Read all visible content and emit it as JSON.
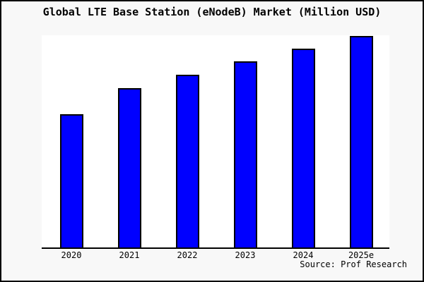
{
  "window": {
    "title": "Global LTE Base Station (eNodeB) Market (Million USD)"
  },
  "colors": {
    "frame_background": "#f8f8f8",
    "plot_background": "#ffffff",
    "bar_fill": "#0000ff",
    "bar_border": "#000000",
    "frame_border": "#000000",
    "text": "#000000"
  },
  "source": {
    "label": "Source: Prof Research"
  },
  "chart_data": {
    "type": "bar",
    "title": "Global LTE Base Station (eNodeB) Market (Million USD)",
    "categories": [
      "2020",
      "2021",
      "2022",
      "2023",
      "2024",
      "2025e"
    ],
    "values": [
      189,
      226,
      245,
      264,
      282,
      300
    ],
    "value_note": "no y-axis or data labels shown; values are relative bar heights estimated from pixels",
    "ylim": [
      0,
      301
    ],
    "xlabel": "",
    "ylabel": "",
    "grid": false,
    "legend": false,
    "bar_color": "#0000ff",
    "source_note": "Source: Prof Research"
  }
}
